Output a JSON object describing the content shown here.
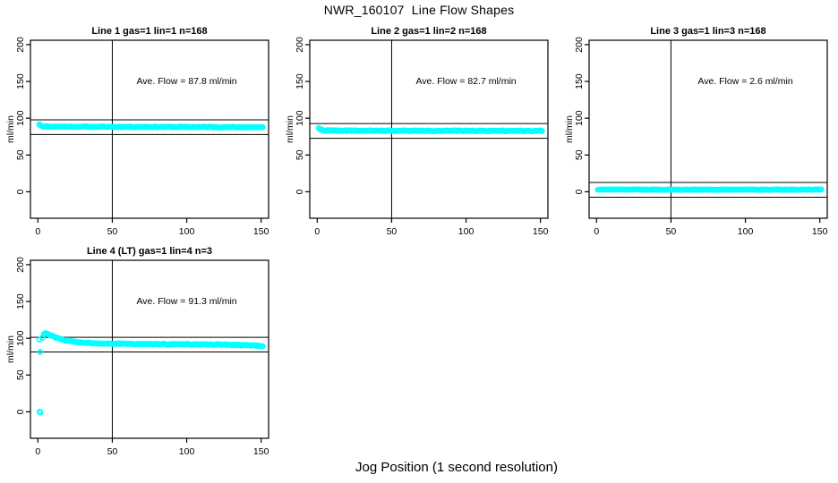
{
  "page": {
    "title": "NWR_160107  Line Flow Shapes",
    "xlabel": "Jog Position (1 second resolution)"
  },
  "colors": {
    "points": "#00FFFF",
    "axis": "#000000",
    "background": "#FFFFFF"
  },
  "chart_data": [
    {
      "type": "scatter",
      "title": "Line 1 gas=1 lin=1 n=168",
      "ylabel": "ml/min",
      "ave_flow": 87.8,
      "ave_flow_label": "Ave. Flow =  87.8  ml/min",
      "ave_label_pos": [
        100,
        150
      ],
      "x_ticks": [
        0,
        50,
        100,
        150
      ],
      "y_ticks": [
        0,
        50,
        100,
        150,
        200
      ],
      "xlim": [
        -5,
        155
      ],
      "ylim": [
        -36,
        206
      ],
      "vline_x": 50,
      "hlines": [
        97.8,
        77.8
      ],
      "point_color": "#00FFFF",
      "grid": false,
      "profile": [
        [
          1,
          91.8
        ],
        [
          2,
          90.2
        ],
        [
          3,
          89.2
        ],
        [
          5,
          88.8
        ],
        [
          10,
          88.6
        ],
        [
          30,
          88.4
        ],
        [
          70,
          88.2
        ],
        [
          110,
          88.0
        ],
        [
          151,
          87.6
        ]
      ],
      "extra_points": [],
      "noise": 0.5,
      "seed": 11
    },
    {
      "type": "scatter",
      "title": "Line 2 gas=1 lin=2 n=168",
      "ylabel": "ml/min",
      "ave_flow": 82.7,
      "ave_flow_label": "Ave. Flow =  82.7  ml/min",
      "ave_label_pos": [
        100,
        150
      ],
      "x_ticks": [
        0,
        50,
        100,
        150
      ],
      "y_ticks": [
        0,
        50,
        100,
        150,
        200
      ],
      "xlim": [
        -5,
        155
      ],
      "ylim": [
        -36,
        206
      ],
      "vline_x": 50,
      "hlines": [
        92.7,
        72.7
      ],
      "point_color": "#00FFFF",
      "grid": false,
      "profile": [
        [
          1,
          86.8
        ],
        [
          2,
          85.0
        ],
        [
          3,
          84.2
        ],
        [
          5,
          83.6
        ],
        [
          10,
          83.2
        ],
        [
          30,
          83.0
        ],
        [
          80,
          82.9
        ],
        [
          151,
          82.8
        ]
      ],
      "extra_points": [],
      "noise": 0.5,
      "seed": 22
    },
    {
      "type": "scatter",
      "title": "Line 3 gas=1 lin=3 n=168",
      "ylabel": "ml/min",
      "ave_flow": 2.6,
      "ave_flow_label": "Ave. Flow =  2.6  ml/min",
      "ave_label_pos": [
        100,
        150
      ],
      "x_ticks": [
        0,
        50,
        100,
        150
      ],
      "y_ticks": [
        0,
        50,
        100,
        150,
        200
      ],
      "xlim": [
        -5,
        155
      ],
      "ylim": [
        -36,
        206
      ],
      "vline_x": 50,
      "hlines": [
        12.6,
        -7.4
      ],
      "point_color": "#00FFFF",
      "grid": false,
      "profile": [
        [
          1,
          3.0
        ],
        [
          151,
          2.9
        ]
      ],
      "extra_points": [],
      "noise": 0.35,
      "seed": 33
    },
    {
      "type": "scatter",
      "title": "Line 4 (LT) gas=1 lin=4 n=3",
      "ylabel": "ml/min",
      "ave_flow": 91.3,
      "ave_flow_label": "Ave. Flow =  91.3  ml/min",
      "ave_label_pos": [
        100,
        150
      ],
      "x_ticks": [
        0,
        50,
        100,
        150
      ],
      "y_ticks": [
        0,
        50,
        100,
        150,
        200
      ],
      "xlim": [
        -5,
        155
      ],
      "ylim": [
        -36,
        206
      ],
      "vline_x": 50,
      "hlines": [
        101.3,
        81.3
      ],
      "point_color": "#00FFFF",
      "grid": false,
      "profile": [
        [
          3,
          101.0
        ],
        [
          4,
          105.8
        ],
        [
          5,
          106.5
        ],
        [
          6,
          106.2
        ],
        [
          8,
          104.6
        ],
        [
          10,
          102.8
        ],
        [
          12,
          101.0
        ],
        [
          15,
          99.0
        ],
        [
          18,
          97.4
        ],
        [
          22,
          95.9
        ],
        [
          26,
          94.9
        ],
        [
          30,
          94.2
        ],
        [
          35,
          93.6
        ],
        [
          40,
          93.2
        ],
        [
          50,
          92.7
        ],
        [
          60,
          92.4
        ],
        [
          80,
          92.0
        ],
        [
          100,
          91.8
        ],
        [
          115,
          91.4
        ],
        [
          125,
          91.2
        ],
        [
          135,
          90.8
        ],
        [
          145,
          90.2
        ],
        [
          151,
          89.6
        ]
      ],
      "extra_points": [
        [
          1,
          98.0
        ],
        [
          1.5,
          81.5
        ],
        [
          1.2,
          0.0
        ],
        [
          1.6,
          -0.9
        ]
      ],
      "noise": 0.55,
      "seed": 44
    }
  ]
}
